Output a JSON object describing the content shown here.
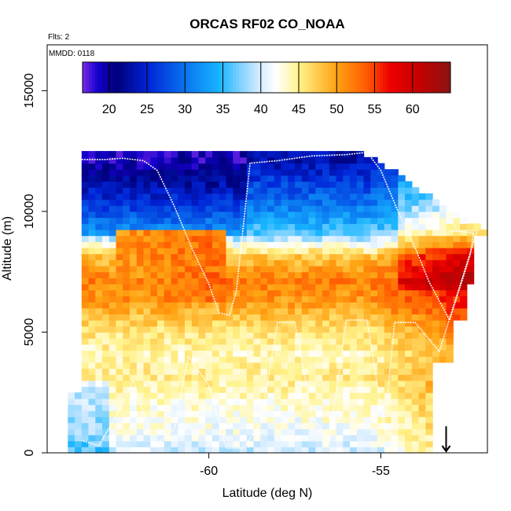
{
  "chart_data": {
    "type": "heatmap",
    "title": "ORCAS RF02 CO_NOAA",
    "subtitle_flights": "Flts: 2",
    "subtitle_date": "MMDD: 0118",
    "xlabel": "Latitude (deg N)",
    "ylabel": "Altitude (m)",
    "xlim": [
      -64.7,
      -51.9
    ],
    "ylim": [
      0,
      16900
    ],
    "x_ticks": [
      -60,
      -55
    ],
    "x_tick_labels": [
      "-60",
      "-55"
    ],
    "y_ticks": [
      0,
      5000,
      10000,
      15000
    ],
    "y_tick_labels": [
      "0",
      "5000",
      "10000",
      "15000"
    ],
    "colorbar": {
      "range": [
        16.5,
        65
      ],
      "ticks": [
        20,
        25,
        30,
        35,
        40,
        45,
        50,
        55,
        60
      ],
      "tick_labels": [
        "20",
        "25",
        "30",
        "35",
        "40",
        "45",
        "50",
        "55",
        "60"
      ],
      "stops": [
        {
          "v": 16.5,
          "c": "#7b2be6"
        },
        {
          "v": 18.5,
          "c": "#1400cc"
        },
        {
          "v": 21.0,
          "c": "#00007a"
        },
        {
          "v": 25.0,
          "c": "#0022d6"
        },
        {
          "v": 30.0,
          "c": "#0a74f0"
        },
        {
          "v": 34.5,
          "c": "#18b4ff"
        },
        {
          "v": 39.5,
          "c": "#cde9ff"
        },
        {
          "v": 42.0,
          "c": "#ffffff"
        },
        {
          "v": 45.0,
          "c": "#fff38c"
        },
        {
          "v": 50.0,
          "c": "#ffa312"
        },
        {
          "v": 54.0,
          "c": "#ff5a00"
        },
        {
          "v": 57.0,
          "c": "#ee0000"
        },
        {
          "v": 61.0,
          "c": "#c40000"
        },
        {
          "v": 65.0,
          "c": "#8a1414"
        }
      ]
    },
    "field_summary": {
      "altitude_layers_m": [
        {
          "z": 12000,
          "co": 23
        },
        {
          "z": 11000,
          "co": 27
        },
        {
          "z": 10000,
          "co": 31
        },
        {
          "z": 9000,
          "co": 36
        },
        {
          "z": 8000,
          "co": 48
        },
        {
          "z": 7000,
          "co": 52
        },
        {
          "z": 6000,
          "co": 50
        },
        {
          "z": 5000,
          "co": 46
        },
        {
          "z": 4000,
          "co": 44
        },
        {
          "z": 3000,
          "co": 45
        },
        {
          "z": 2000,
          "co": 43
        },
        {
          "z": 1000,
          "co": 42
        },
        {
          "z": 0,
          "co": 40
        }
      ],
      "note_high_co_lat": -53.5,
      "max_co": 62
    },
    "flight_track": [
      [
        -63.7,
        12150
      ],
      [
        -63.0,
        12150
      ],
      [
        -62.5,
        12200
      ],
      [
        -61.9,
        12100
      ],
      [
        -61.5,
        11700
      ],
      [
        -61.0,
        10200
      ],
      [
        -60.5,
        8500
      ],
      [
        -60.0,
        7000
      ],
      [
        -59.7,
        5800
      ],
      [
        -59.4,
        5700
      ],
      [
        -59.2,
        6700
      ],
      [
        -58.8,
        12000
      ],
      [
        -58.0,
        12100
      ],
      [
        -57.0,
        12300
      ],
      [
        -56.0,
        12350
      ],
      [
        -55.4,
        12450
      ],
      [
        -55.0,
        11700
      ],
      [
        -54.5,
        10000
      ],
      [
        -54.0,
        8500
      ],
      [
        -53.6,
        7100
      ],
      [
        -53.0,
        5500
      ],
      [
        -52.4,
        8200
      ],
      [
        -52.3,
        9100
      ],
      [
        -53.0,
        9200
      ],
      [
        -52.2,
        9200
      ],
      [
        -53.3,
        4200
      ],
      [
        -54.0,
        5400
      ],
      [
        -54.6,
        5400
      ],
      [
        -54.9,
        1000
      ],
      [
        -55.4,
        5500
      ],
      [
        -56.0,
        5500
      ],
      [
        -56.5,
        500
      ],
      [
        -57.0,
        1500
      ],
      [
        -57.5,
        5400
      ],
      [
        -58.0,
        5400
      ],
      [
        -58.5,
        1200
      ],
      [
        -59.0,
        200
      ],
      [
        -59.5,
        200
      ],
      [
        -60.0,
        2800
      ],
      [
        -60.6,
        4000
      ],
      [
        -61.0,
        1000
      ],
      [
        -61.6,
        300
      ],
      [
        -62.2,
        3000
      ],
      [
        -62.7,
        1500
      ],
      [
        -63.2,
        300
      ],
      [
        -63.7,
        500
      ]
    ],
    "arrow_marker": {
      "lat": -53.1,
      "alt": 600
    }
  }
}
